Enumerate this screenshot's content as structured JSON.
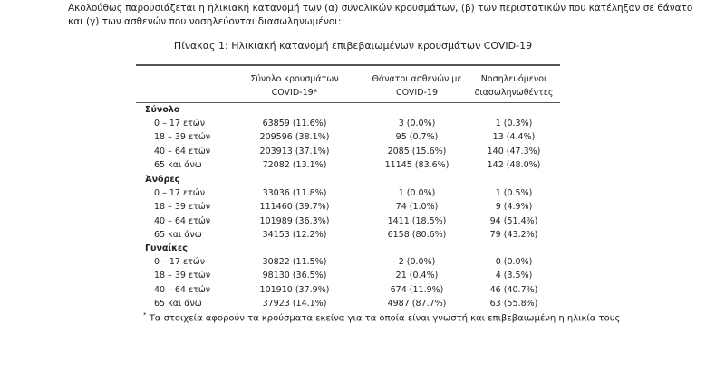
{
  "intro": "Ακολούθως παρουσιάζεται η ηλικιακή κατανομή των (α) συνολικών κρουσμάτων, (β) των περιστατικών που κατέληξαν σε θάνατο και (γ) των ασθενών που νοσηλεύονται διασωληνωμένοι:",
  "title": "Πίνακας 1: Ηλικιακή κατανομή επιβεβαιωμένων κρουσμάτων COVID-19",
  "headers": [
    {
      "line1": "Σύνολο κρουσμάτων",
      "line2": "COVID-19*"
    },
    {
      "line1": "Θάνατοι ασθενών με",
      "line2": "COVID-19"
    },
    {
      "line1": "Νοσηλευόμενοι",
      "line2": "διασωληνωθέντες"
    }
  ],
  "groups": [
    {
      "name": "Σύνολο",
      "rows": [
        [
          "0 – 17 ετών",
          "63859 (11.6%)",
          "3 (0.0%)",
          "1 (0.3%)"
        ],
        [
          "18 – 39 ετών",
          "209596 (38.1%)",
          "95 (0.7%)",
          "13 (4.4%)"
        ],
        [
          "40 – 64 ετών",
          "203913 (37.1%)",
          "2085 (15.6%)",
          "140 (47.3%)"
        ],
        [
          "65 και άνω",
          "72082 (13.1%)",
          "11145 (83.6%)",
          "142 (48.0%)"
        ]
      ]
    },
    {
      "name": "Άνδρες",
      "rows": [
        [
          "0 – 17 ετών",
          "33036 (11.8%)",
          "1 (0.0%)",
          "1 (0.5%)"
        ],
        [
          "18 – 39 ετών",
          "111460 (39.7%)",
          "74 (1.0%)",
          "9 (4.9%)"
        ],
        [
          "40 – 64 ετών",
          "101989 (36.3%)",
          "1411 (18.5%)",
          "94 (51.4%)"
        ],
        [
          "65 και άνω",
          "34153 (12.2%)",
          "6158 (80.6%)",
          "79 (43.2%)"
        ]
      ]
    },
    {
      "name": "Γυναίκες",
      "rows": [
        [
          "0 – 17 ετών",
          "30822 (11.5%)",
          "2 (0.0%)",
          "0 (0.0%)"
        ],
        [
          "18 – 39 ετών",
          "98130 (36.5%)",
          "21 (0.4%)",
          "4 (3.5%)"
        ],
        [
          "40 – 64 ετών",
          "101910 (37.9%)",
          "674 (11.9%)",
          "46 (40.7%)"
        ],
        [
          "65 και άνω",
          "37923 (14.1%)",
          "4987 (87.7%)",
          "63 (55.8%)"
        ]
      ]
    }
  ],
  "footnote_mark": "*",
  "footnote": "Τα στοιχεία αφορούν τα κρούσματα εκείνα για τα οποία είναι γνωστή και επιβεβαιωμένη η ηλικία τους"
}
